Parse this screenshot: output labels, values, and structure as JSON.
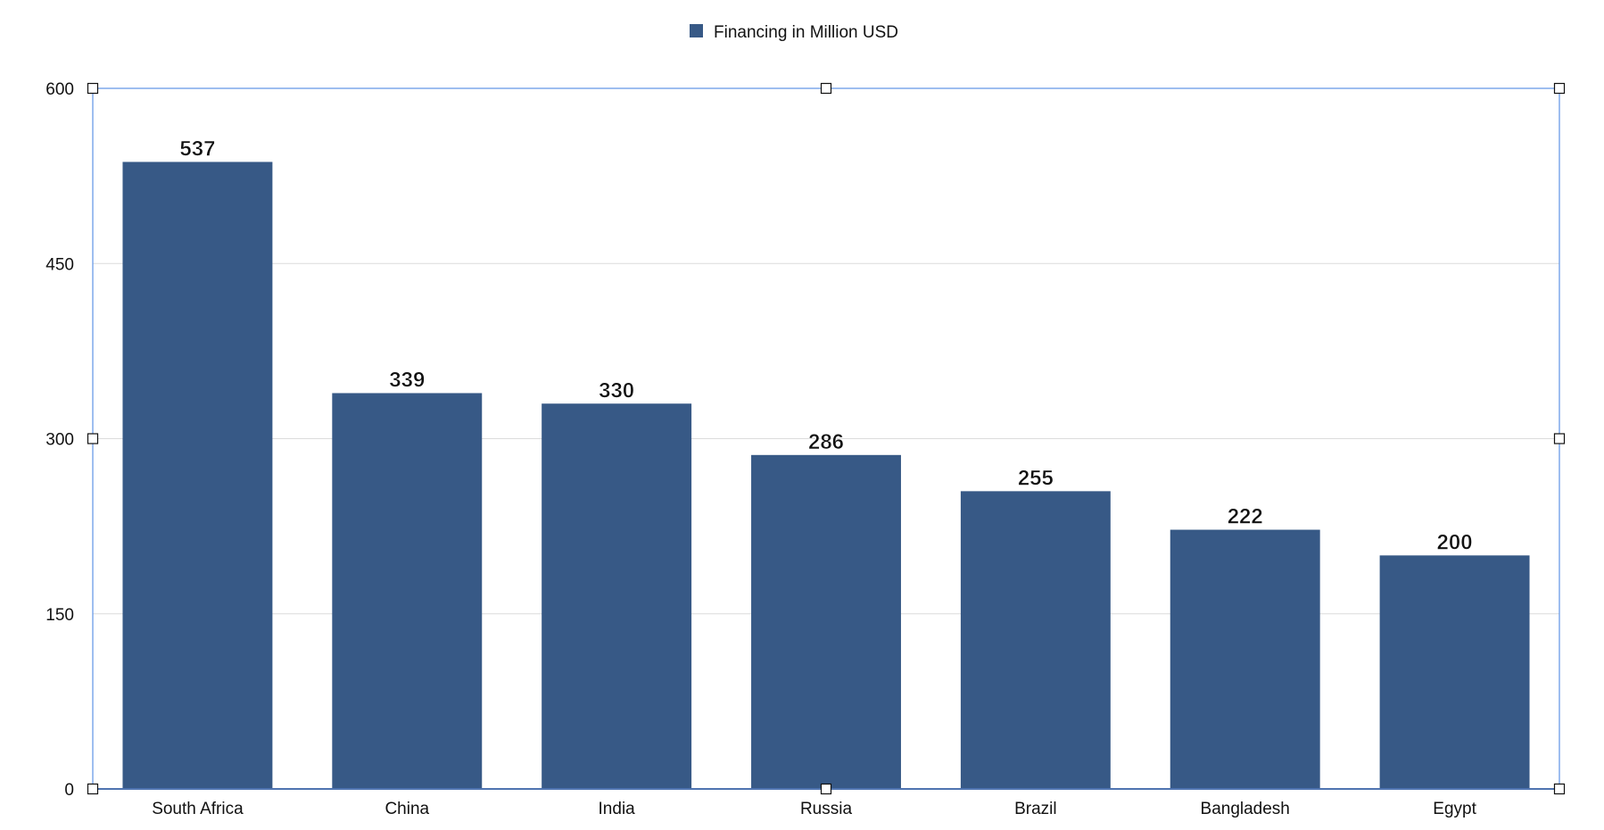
{
  "chart_data": {
    "type": "bar",
    "title": "",
    "xlabel": "",
    "ylabel": "",
    "categories": [
      "South Africa",
      "China",
      "India",
      "Russia",
      "Brazil",
      "Bangladesh",
      "Egypt"
    ],
    "series": [
      {
        "name": "Financing in Million USD",
        "values": [
          537,
          339,
          330,
          286,
          255,
          222,
          200
        ],
        "color": "#375986"
      }
    ],
    "ylim": [
      0,
      600
    ],
    "yticks": [
      0,
      150,
      300,
      450,
      600
    ],
    "grid": true,
    "legend": "top-center",
    "data_labels": true,
    "selection_border_color": "#6a9be8"
  }
}
